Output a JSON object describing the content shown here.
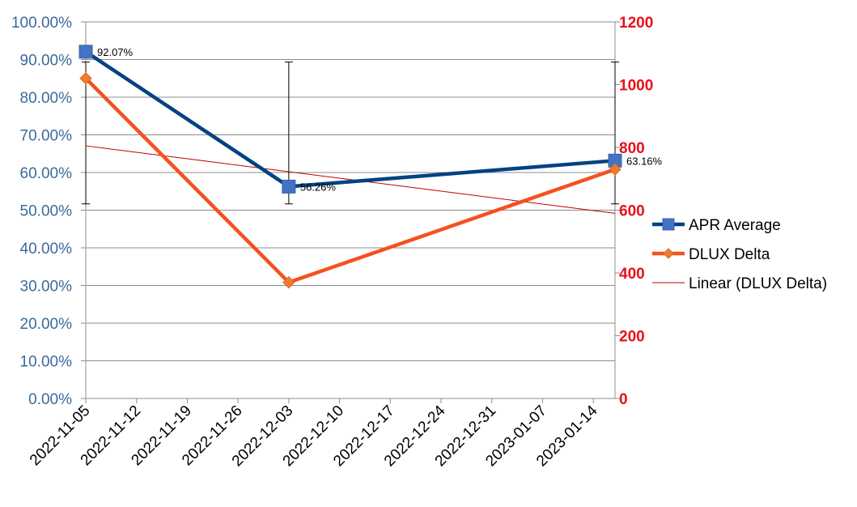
{
  "chart_data": {
    "type": "line",
    "x_type": "date",
    "x_ticks": [
      "2022-11-05",
      "2022-11-12",
      "2022-11-19",
      "2022-11-26",
      "2022-12-03",
      "2022-12-10",
      "2022-12-17",
      "2022-12-24",
      "2022-12-31",
      "2023-01-07",
      "2023-01-14"
    ],
    "x_range": [
      "2022-11-05",
      "2023-01-17"
    ],
    "y_left": {
      "range": [
        0,
        1.0
      ],
      "ticks": [
        0,
        0.1,
        0.2,
        0.3,
        0.4,
        0.5,
        0.6,
        0.7,
        0.8,
        0.9,
        1.0
      ],
      "tick_labels": [
        "0.00%",
        "10.00%",
        "20.00%",
        "30.00%",
        "40.00%",
        "50.00%",
        "60.00%",
        "70.00%",
        "80.00%",
        "90.00%",
        "100.00%"
      ],
      "color": "#3A6A9C"
    },
    "y_right": {
      "range": [
        0,
        1200
      ],
      "ticks": [
        0,
        200,
        400,
        600,
        800,
        1000,
        1200
      ],
      "tick_labels": [
        "0",
        "200",
        "400",
        "600",
        "800",
        "1000",
        "1200"
      ],
      "color": "#E8101A"
    },
    "grid": true,
    "legend_position": "right",
    "series": [
      {
        "name": "APR Average",
        "axis": "left",
        "color": "#004282",
        "marker_color": "#4472C4",
        "marker": "square",
        "x": [
          "2022-11-05",
          "2022-12-03",
          "2023-01-17"
        ],
        "values": [
          0.9207,
          0.5626,
          0.6316
        ],
        "data_labels": [
          "92.07%",
          "56.26%",
          "63.16%"
        ],
        "error_bars": [
          {
            "x": "2022-11-05",
            "low": 0.5167,
            "high": 0.8933
          },
          {
            "x": "2022-12-03",
            "low": 0.5167,
            "high": 0.8933
          },
          {
            "x": "2023-01-17",
            "low": 0.5167,
            "high": 0.8933
          }
        ]
      },
      {
        "name": "DLUX Delta",
        "axis": "right",
        "color": "#F4511E",
        "marker_color": "#ED7D31",
        "marker": "diamond",
        "x": [
          "2022-11-05",
          "2022-12-03",
          "2023-01-17"
        ],
        "values": [
          1020,
          370,
          730
        ]
      },
      {
        "name": "Linear (DLUX Delta)",
        "axis": "right",
        "color": "#C00000",
        "type": "trendline",
        "x": [
          "2022-11-05",
          "2023-01-17"
        ],
        "values": [
          805,
          590
        ]
      }
    ]
  }
}
